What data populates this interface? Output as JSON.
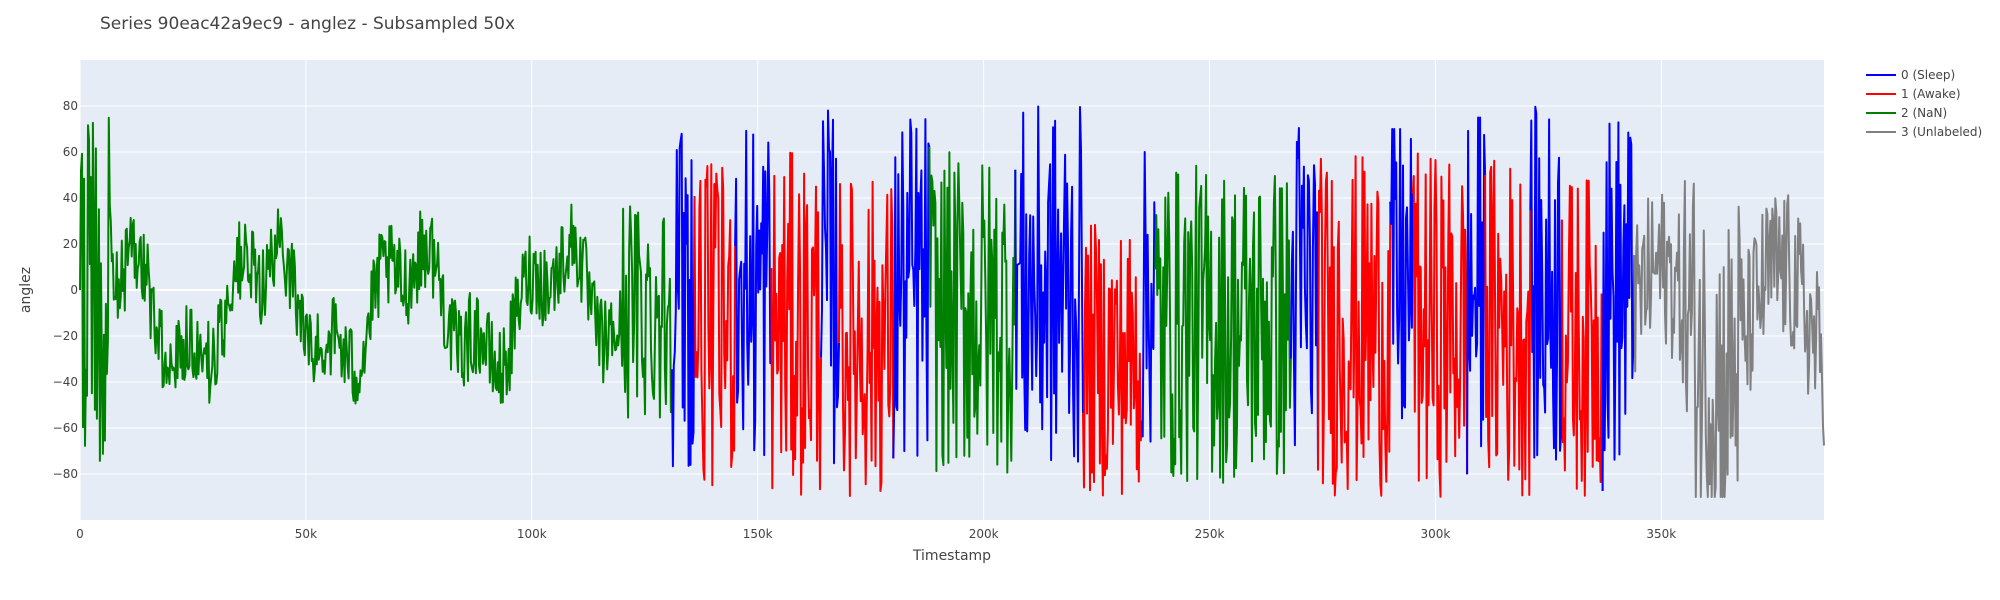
{
  "chart_data": {
    "type": "line",
    "title": "Series 90eac42a9ec9 - anglez - Subsampled 50x",
    "xlabel": "Timestamp",
    "ylabel": "anglez",
    "xlim": [
      0,
      386000
    ],
    "ylim": [
      -100,
      100
    ],
    "x_ticks": [
      0,
      50000,
      100000,
      150000,
      200000,
      250000,
      300000,
      350000
    ],
    "x_tick_labels": [
      "0",
      "50k",
      "100k",
      "150k",
      "200k",
      "250k",
      "300k",
      "350k"
    ],
    "y_ticks": [
      -80,
      -60,
      -40,
      -20,
      0,
      20,
      40,
      60,
      80
    ],
    "y_tick_labels": [
      "−80",
      "−60",
      "−40",
      "−20",
      "0",
      "20",
      "40",
      "60",
      "80"
    ],
    "grid": true,
    "legend_position": "top-right",
    "series": [
      {
        "name": "0 (Sleep)",
        "color": "#0000ff"
      },
      {
        "name": "1 (Awake)",
        "color": "#ff0000"
      },
      {
        "name": "2 (NaN)",
        "color": "#008000"
      },
      {
        "name": "3 (Unlabeled)",
        "color": "#808080"
      }
    ],
    "segments": [
      {
        "series": 2,
        "x": [
          0,
          131000
        ],
        "mean": -8,
        "amp": 50,
        "peak": 82
      },
      {
        "series": 0,
        "x": [
          131000,
          136000
        ],
        "mean": 0,
        "amp": 80,
        "peak": 84
      },
      {
        "series": 1,
        "x": [
          136000,
          145000
        ],
        "mean": -15,
        "amp": 70,
        "peak": 65
      },
      {
        "series": 0,
        "x": [
          145000,
          153000
        ],
        "mean": 0,
        "amp": 80,
        "peak": 84
      },
      {
        "series": 1,
        "x": [
          153000,
          164000
        ],
        "mean": -15,
        "amp": 75,
        "peak": 75
      },
      {
        "series": 0,
        "x": [
          164000,
          168000
        ],
        "mean": 0,
        "amp": 80,
        "peak": 80
      },
      {
        "series": 1,
        "x": [
          168000,
          180000
        ],
        "mean": -20,
        "amp": 70,
        "peak": 60
      },
      {
        "series": 0,
        "x": [
          180000,
          188000
        ],
        "mean": 0,
        "amp": 80,
        "peak": 84
      },
      {
        "series": 2,
        "x": [
          188000,
          207000
        ],
        "mean": -10,
        "amp": 70,
        "peak": 80
      },
      {
        "series": 0,
        "x": [
          207000,
          222000
        ],
        "mean": 0,
        "amp": 80,
        "peak": 84
      },
      {
        "series": 1,
        "x": [
          222000,
          235000
        ],
        "mean": -30,
        "amp": 60,
        "peak": 45
      },
      {
        "series": 0,
        "x": [
          235000,
          238000
        ],
        "mean": 0,
        "amp": 70,
        "peak": 60
      },
      {
        "series": 2,
        "x": [
          238000,
          268000
        ],
        "mean": -15,
        "amp": 70,
        "peak": 82
      },
      {
        "series": 0,
        "x": [
          268000,
          274000
        ],
        "mean": 0,
        "amp": 80,
        "peak": 88
      },
      {
        "series": 1,
        "x": [
          274000,
          290000
        ],
        "mean": -15,
        "amp": 75,
        "peak": 80
      },
      {
        "series": 0,
        "x": [
          290000,
          295000
        ],
        "mean": 0,
        "amp": 75,
        "peak": 70
      },
      {
        "series": 1,
        "x": [
          295000,
          307000
        ],
        "mean": -15,
        "amp": 75,
        "peak": 75
      },
      {
        "series": 0,
        "x": [
          307000,
          311000
        ],
        "mean": 0,
        "amp": 80,
        "peak": 75
      },
      {
        "series": 1,
        "x": [
          311000,
          321000
        ],
        "mean": -15,
        "amp": 75,
        "peak": 86
      },
      {
        "series": 0,
        "x": [
          321000,
          328000
        ],
        "mean": 0,
        "amp": 80,
        "peak": 84
      },
      {
        "series": 1,
        "x": [
          328000,
          337000
        ],
        "mean": -20,
        "amp": 70,
        "peak": 65
      },
      {
        "series": 0,
        "x": [
          337000,
          344000
        ],
        "mean": 0,
        "amp": 80,
        "peak": 86
      },
      {
        "series": 3,
        "x": [
          344000,
          386000
        ],
        "mean": -15,
        "amp": 60,
        "peak": 70
      }
    ]
  }
}
